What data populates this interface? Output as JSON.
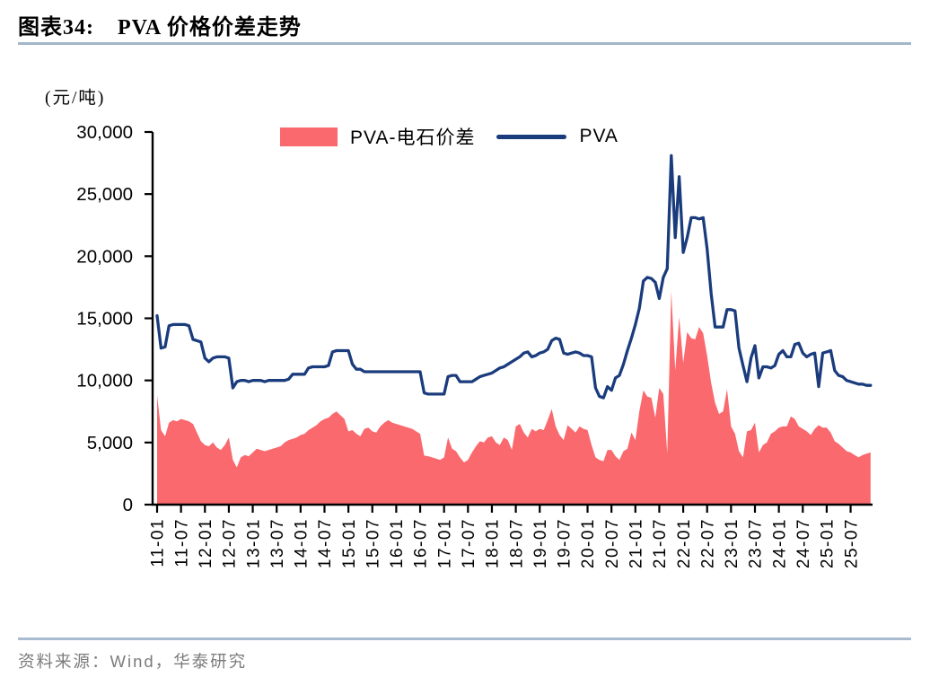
{
  "title": {
    "fig_label": "图表34:",
    "text": "PVA 价格价差走势"
  },
  "unit_label": "(元/吨)",
  "source": "资料来源：Wind，华泰研究",
  "chart_data": {
    "type": "area+line",
    "title": "PVA 价格价差走势",
    "ylabel": "(元/吨)",
    "ylim": [
      0,
      30000
    ],
    "grid": false,
    "legend_position": "top-center",
    "x_start": "2011-01",
    "x_step": "month",
    "x_tick_labels": [
      "11-01",
      "11-07",
      "12-01",
      "12-07",
      "13-01",
      "13-07",
      "14-01",
      "14-07",
      "15-01",
      "15-07",
      "16-01",
      "16-07",
      "17-01",
      "17-07",
      "18-01",
      "18-07",
      "19-01",
      "19-07",
      "20-01",
      "20-07",
      "21-01",
      "21-07",
      "22-01",
      "22-07",
      "23-01",
      "23-07",
      "24-01",
      "24-07",
      "25-01",
      "25-07"
    ],
    "y_ticks": [
      {
        "value": 0,
        "label": "0"
      },
      {
        "value": 5000,
        "label": "5,000"
      },
      {
        "value": 10000,
        "label": "10,000"
      },
      {
        "value": 15000,
        "label": "15,000"
      },
      {
        "value": 20000,
        "label": "20,000"
      },
      {
        "value": 25000,
        "label": "25,000"
      },
      {
        "value": 30000,
        "label": "30,000"
      }
    ],
    "series": [
      {
        "name": "PVA-电石价差",
        "type": "area",
        "color": "#f9696e",
        "values": [
          8800,
          6000,
          5500,
          6600,
          6800,
          6700,
          6900,
          6800,
          6700,
          6500,
          5800,
          5100,
          4800,
          4700,
          5000,
          4600,
          4400,
          4800,
          5400,
          3600,
          3000,
          3800,
          4000,
          3900,
          4200,
          4500,
          4400,
          4300,
          4400,
          4500,
          4600,
          4700,
          5000,
          5200,
          5300,
          5400,
          5600,
          5700,
          6000,
          6200,
          6400,
          6700,
          6900,
          7000,
          7300,
          7500,
          7200,
          6900,
          5900,
          6000,
          5700,
          5500,
          6100,
          6200,
          5900,
          5800,
          6300,
          6600,
          6800,
          6600,
          6500,
          6400,
          6300,
          6200,
          6100,
          5900,
          5700,
          3950,
          3900,
          3800,
          3700,
          3600,
          3800,
          5400,
          4500,
          4300,
          3800,
          3400,
          3600,
          4200,
          4700,
          5100,
          5000,
          5400,
          5500,
          5000,
          4800,
          5400,
          5200,
          4400,
          6300,
          6500,
          5800,
          5400,
          6100,
          5900,
          6100,
          6000,
          6800,
          7700,
          6300,
          5600,
          5200,
          6400,
          6100,
          5800,
          6300,
          6100,
          6000,
          4800,
          3800,
          3600,
          3500,
          4400,
          4400,
          3900,
          3600,
          4300,
          4500,
          5800,
          5200,
          7500,
          9200,
          8700,
          8600,
          7000,
          9400,
          8900,
          4100,
          17200,
          10800,
          15100,
          11400,
          13900,
          13400,
          13300,
          14300,
          13800,
          12000,
          9800,
          8200,
          7300,
          7500,
          9300,
          6300,
          5700,
          4300,
          3800,
          5900,
          6000,
          6600,
          4200,
          4800,
          5000,
          5700,
          5900,
          6200,
          6300,
          6300,
          7100,
          6900,
          6300,
          6100,
          5900,
          5600,
          6100,
          6400,
          6200,
          6200,
          5800,
          5100,
          4900,
          4600,
          4300,
          4200,
          4000,
          3800,
          4000,
          4100,
          4200
        ]
      },
      {
        "name": "PVA",
        "type": "line",
        "color": "#1a3c7d",
        "values": [
          15200,
          12600,
          12700,
          14400,
          14500,
          14500,
          14500,
          14500,
          14400,
          13300,
          13200,
          13100,
          11800,
          11500,
          11800,
          11900,
          11900,
          11900,
          11800,
          9400,
          9900,
          10000,
          10000,
          9900,
          10000,
          10000,
          10000,
          9900,
          10000,
          10000,
          10000,
          10000,
          10000,
          10100,
          10500,
          10500,
          10500,
          10500,
          11000,
          11100,
          11100,
          11100,
          11100,
          11200,
          12300,
          12400,
          12400,
          12400,
          12400,
          11300,
          10900,
          10900,
          10700,
          10700,
          10700,
          10700,
          10700,
          10700,
          10700,
          10700,
          10700,
          10700,
          10700,
          10700,
          10700,
          10700,
          10700,
          9000,
          8900,
          8900,
          8900,
          8900,
          8900,
          10300,
          10400,
          10400,
          9900,
          9900,
          9900,
          9900,
          10100,
          10300,
          10400,
          10500,
          10600,
          10800,
          11000,
          11100,
          11300,
          11500,
          11700,
          11900,
          12200,
          12300,
          11900,
          12000,
          12200,
          12300,
          12500,
          13200,
          13400,
          13300,
          12200,
          12100,
          12200,
          12300,
          12200,
          12000,
          12000,
          11900,
          9400,
          8700,
          8600,
          9500,
          9200,
          10200,
          10400,
          11300,
          12400,
          13400,
          14500,
          15800,
          18000,
          18300,
          18200,
          17900,
          16600,
          18300,
          19000,
          28100,
          21500,
          26400,
          20300,
          21500,
          23100,
          23100,
          23000,
          23100,
          20600,
          17000,
          14300,
          14300,
          14300,
          15700,
          15700,
          15600,
          12600,
          11200,
          9900,
          11800,
          12800,
          10200,
          11100,
          11100,
          11000,
          11200,
          12100,
          12400,
          11900,
          11900,
          12900,
          13000,
          12200,
          11900,
          12100,
          12200,
          9500,
          12200,
          12300,
          12400,
          10800,
          10400,
          10300,
          10000,
          9900,
          9800,
          9700,
          9700,
          9600,
          9600
        ]
      }
    ]
  }
}
